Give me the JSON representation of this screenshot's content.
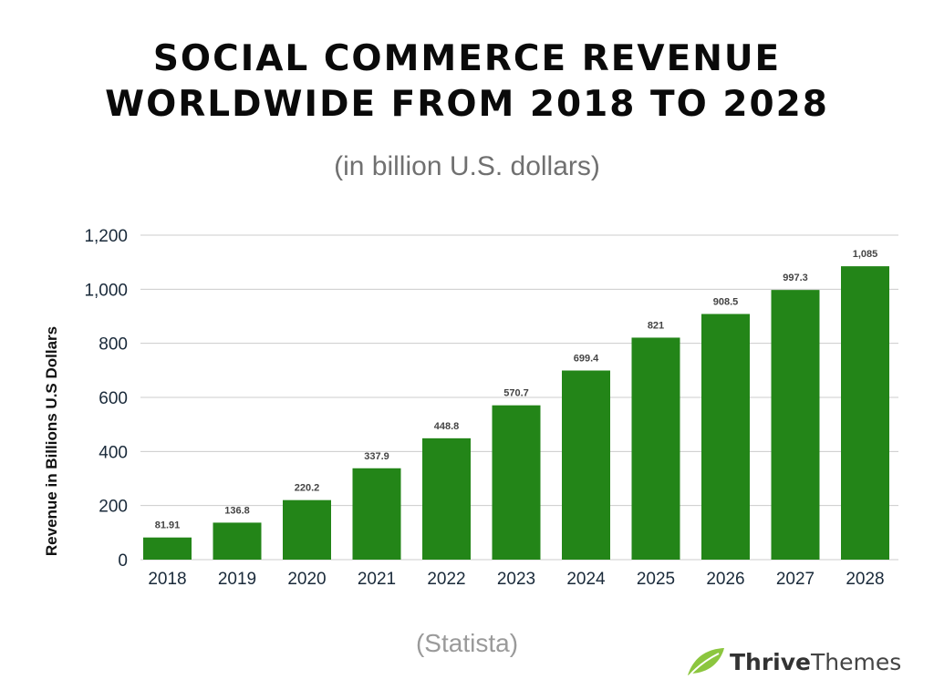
{
  "title_line1": "SOCIAL COMMERCE REVENUE",
  "title_line2": "WORLDWIDE FROM 2018 TO 2028",
  "subtitle": "(in billion U.S. dollars)",
  "source": "(Statista)",
  "brand": {
    "part1": "Thrive",
    "part2": "Themes",
    "icon": "leaf-icon"
  },
  "colors": {
    "bar": "#238518",
    "grid": "#cccccc",
    "axis_text": "#1a2a3a",
    "label_text": "#444444",
    "leaf": "#8cc63f"
  },
  "chart_data": {
    "type": "bar",
    "categories": [
      "2018",
      "2019",
      "2020",
      "2021",
      "2022",
      "2023",
      "2024",
      "2025",
      "2026",
      "2027",
      "2028"
    ],
    "values": [
      81.91,
      136.8,
      220.2,
      337.9,
      448.8,
      570.7,
      699.4,
      821,
      908.5,
      997.3,
      1085
    ],
    "value_labels": [
      "81.91",
      "136.8",
      "220.2",
      "337.9",
      "448.8",
      "570.7",
      "699.4",
      "821",
      "908.5",
      "997.3",
      "1,085"
    ],
    "ylabel": "Revenue in Billions U.S Dollars",
    "ylim": [
      0,
      1200
    ],
    "yticks": [
      0,
      200,
      400,
      600,
      800,
      1000,
      1200
    ],
    "ytick_labels": [
      "0",
      "200",
      "400",
      "600",
      "800",
      "1,000",
      "1,200"
    ],
    "grid": true
  }
}
